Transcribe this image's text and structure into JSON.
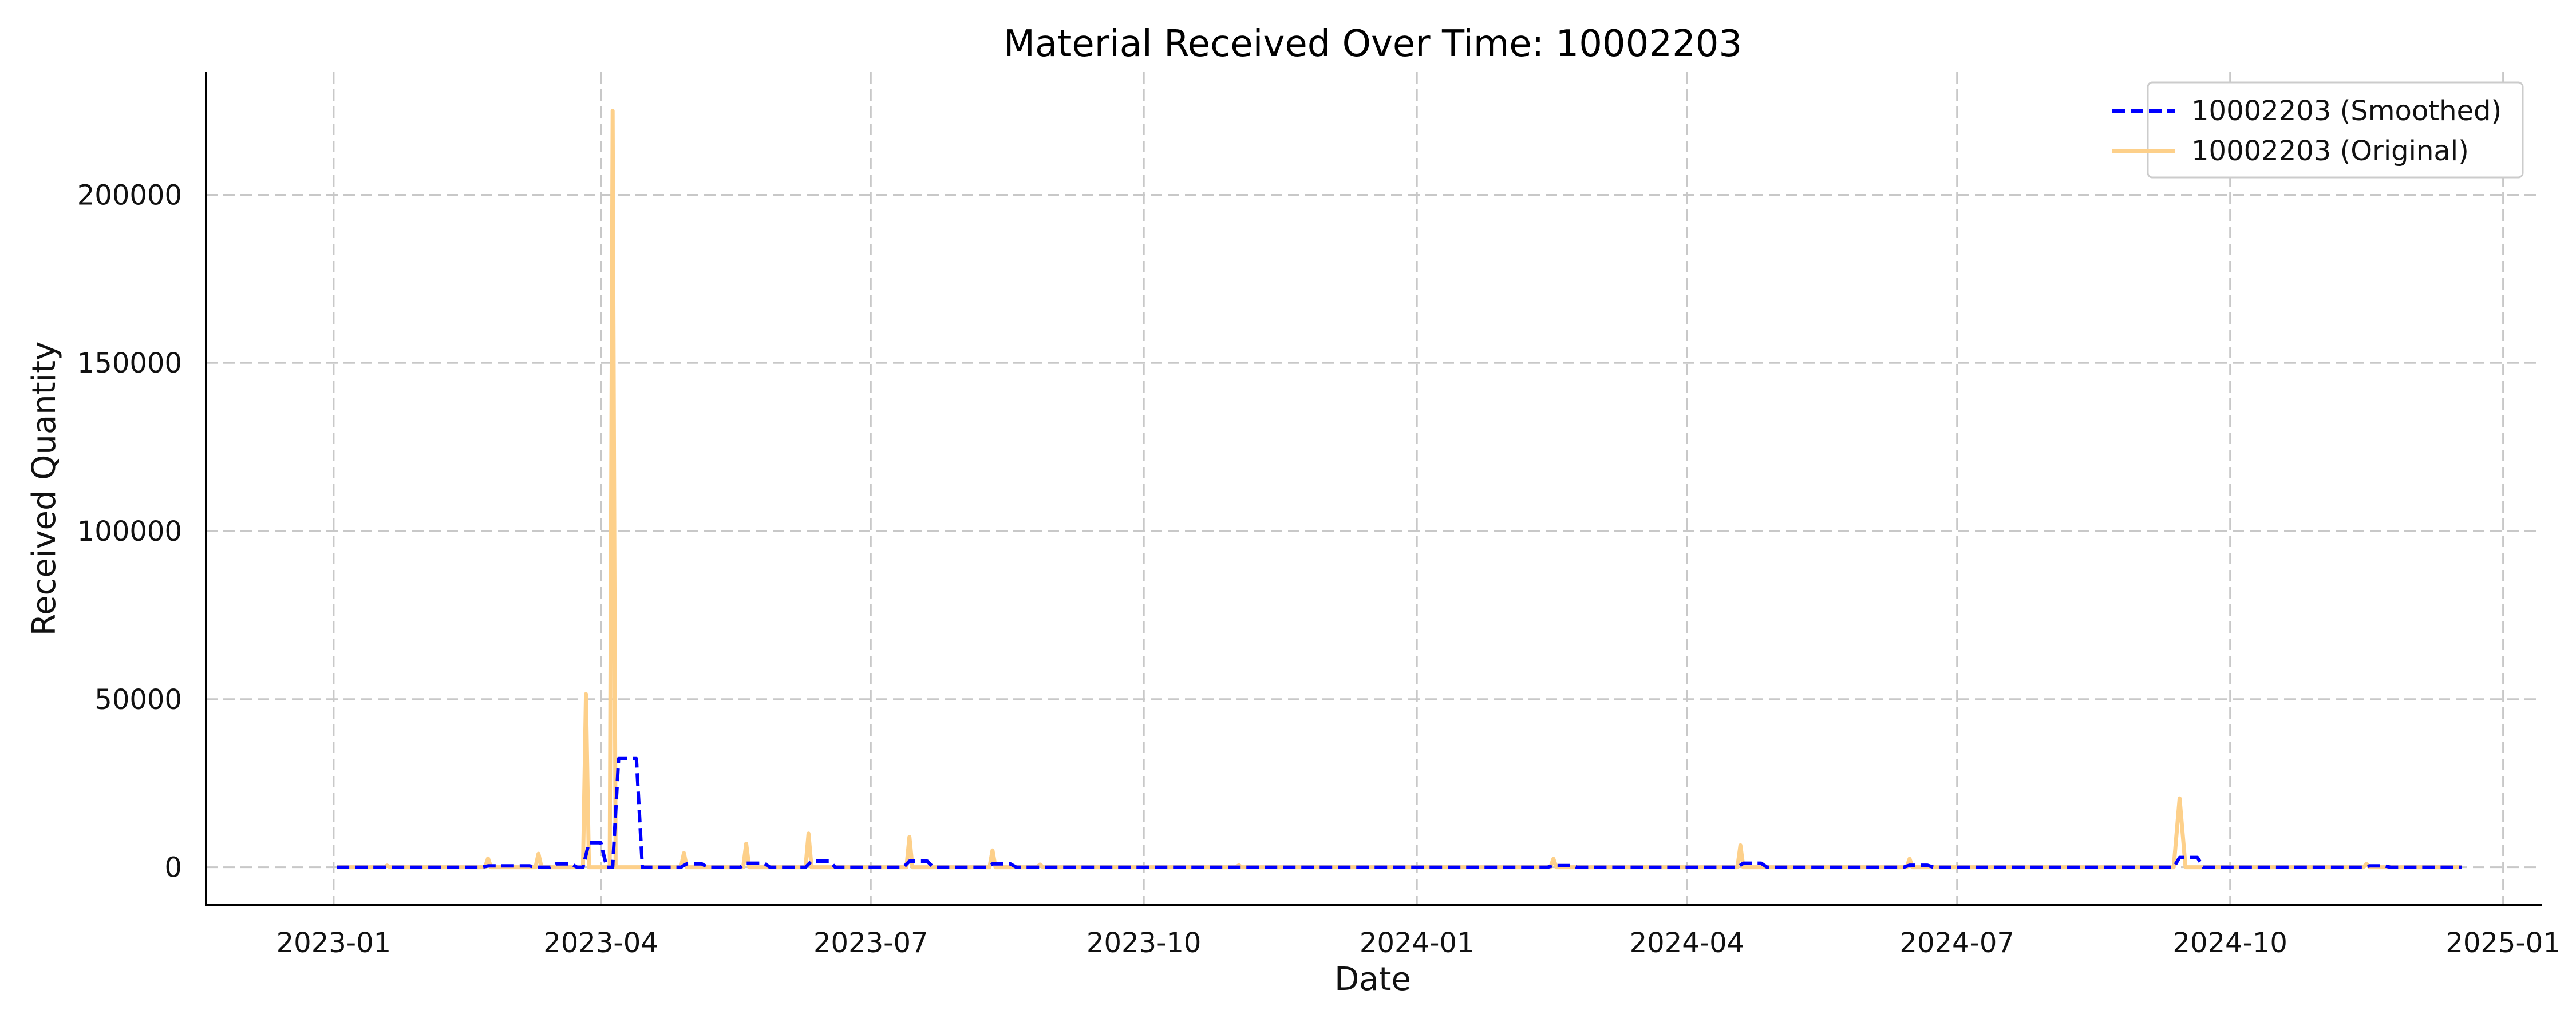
{
  "chart_data": {
    "type": "line",
    "title": "Material Received Over Time: 10002203",
    "xlabel": "Date",
    "ylabel": "Received Quantity",
    "x_ticks": [
      "2023-01",
      "2023-04",
      "2023-07",
      "2023-10",
      "2024-01",
      "2024-04",
      "2024-07",
      "2024-10",
      "2025-01"
    ],
    "y_ticks": [
      "0",
      "50000",
      "100000",
      "150000",
      "200000"
    ],
    "xlim": [
      "2022-11-19",
      "2025-01-14"
    ],
    "ylim": [
      -11300,
      236500
    ],
    "grid": true,
    "legend_position": "top-right",
    "series": [
      {
        "name": "10002203 (Smoothed)",
        "color": "#0000ff",
        "style": "dashed",
        "points": [
          [
            "2023-01-02",
            0
          ],
          [
            "2023-02-20",
            0
          ],
          [
            "2023-02-22",
            400
          ],
          [
            "2023-03-08",
            400
          ],
          [
            "2023-03-10",
            0
          ],
          [
            "2023-03-15",
            0
          ],
          [
            "2023-03-17",
            1000
          ],
          [
            "2023-03-22",
            1000
          ],
          [
            "2023-03-24",
            0
          ],
          [
            "2023-03-26",
            0
          ],
          [
            "2023-03-28",
            7300
          ],
          [
            "2023-04-01",
            7300
          ],
          [
            "2023-04-03",
            0
          ],
          [
            "2023-04-05",
            0
          ],
          [
            "2023-04-07",
            32300
          ],
          [
            "2023-04-13",
            32300
          ],
          [
            "2023-04-15",
            0
          ],
          [
            "2023-04-28",
            0
          ],
          [
            "2023-04-30",
            1000
          ],
          [
            "2023-05-05",
            1000
          ],
          [
            "2023-05-07",
            0
          ],
          [
            "2023-05-18",
            0
          ],
          [
            "2023-05-20",
            1200
          ],
          [
            "2023-05-26",
            1200
          ],
          [
            "2023-05-28",
            0
          ],
          [
            "2023-06-09",
            0
          ],
          [
            "2023-06-11",
            1800
          ],
          [
            "2023-06-17",
            1800
          ],
          [
            "2023-06-19",
            0
          ],
          [
            "2023-07-12",
            0
          ],
          [
            "2023-07-14",
            1800
          ],
          [
            "2023-07-20",
            1800
          ],
          [
            "2023-07-22",
            0
          ],
          [
            "2023-08-09",
            0
          ],
          [
            "2023-08-11",
            1000
          ],
          [
            "2023-08-17",
            1000
          ],
          [
            "2023-08-19",
            0
          ],
          [
            "2024-02-14",
            0
          ],
          [
            "2024-02-16",
            500
          ],
          [
            "2024-02-22",
            500
          ],
          [
            "2024-02-24",
            0
          ],
          [
            "2024-04-18",
            0
          ],
          [
            "2024-04-20",
            1200
          ],
          [
            "2024-04-26",
            1200
          ],
          [
            "2024-04-28",
            0
          ],
          [
            "2024-06-13",
            0
          ],
          [
            "2024-06-15",
            600
          ],
          [
            "2024-06-21",
            600
          ],
          [
            "2024-06-23",
            0
          ],
          [
            "2024-09-12",
            0
          ],
          [
            "2024-09-14",
            2900
          ],
          [
            "2024-09-20",
            2900
          ],
          [
            "2024-09-22",
            0
          ],
          [
            "2024-11-15",
            0
          ],
          [
            "2024-11-17",
            400
          ],
          [
            "2024-11-22",
            400
          ],
          [
            "2024-11-24",
            0
          ],
          [
            "2024-12-18",
            0
          ]
        ]
      },
      {
        "name": "10002203 (Original)",
        "color": "#fdd08a",
        "style": "solid",
        "points": [
          [
            "2023-01-02",
            0
          ],
          [
            "2023-01-18",
            0
          ],
          [
            "2023-01-19",
            500
          ],
          [
            "2023-01-20",
            0
          ],
          [
            "2023-02-21",
            0
          ],
          [
            "2023-02-22",
            2600
          ],
          [
            "2023-02-23",
            0
          ],
          [
            "2023-03-10",
            0
          ],
          [
            "2023-03-11",
            4000
          ],
          [
            "2023-03-12",
            0
          ],
          [
            "2023-03-26",
            0
          ],
          [
            "2023-03-27",
            51500
          ],
          [
            "2023-03-28",
            0
          ],
          [
            "2023-04-04",
            0
          ],
          [
            "2023-04-05",
            225000
          ],
          [
            "2023-04-06",
            0
          ],
          [
            "2023-04-28",
            0
          ],
          [
            "2023-04-29",
            4200
          ],
          [
            "2023-04-30",
            0
          ],
          [
            "2023-05-19",
            0
          ],
          [
            "2023-05-20",
            7000
          ],
          [
            "2023-05-21",
            0
          ],
          [
            "2023-06-09",
            0
          ],
          [
            "2023-06-10",
            10000
          ],
          [
            "2023-06-11",
            0
          ],
          [
            "2023-07-13",
            0
          ],
          [
            "2023-07-14",
            9000
          ],
          [
            "2023-07-15",
            0
          ],
          [
            "2023-08-10",
            0
          ],
          [
            "2023-08-11",
            5000
          ],
          [
            "2023-08-12",
            0
          ],
          [
            "2023-08-26",
            0
          ],
          [
            "2023-08-27",
            800
          ],
          [
            "2023-08-28",
            0
          ],
          [
            "2023-11-01",
            0
          ],
          [
            "2023-11-02",
            600
          ],
          [
            "2023-11-03",
            0
          ],
          [
            "2024-02-15",
            0
          ],
          [
            "2024-02-16",
            2500
          ],
          [
            "2024-02-17",
            0
          ],
          [
            "2024-04-18",
            0
          ],
          [
            "2024-04-19",
            6500
          ],
          [
            "2024-04-20",
            0
          ],
          [
            "2024-06-14",
            0
          ],
          [
            "2024-06-15",
            2500
          ],
          [
            "2024-06-16",
            0
          ],
          [
            "2024-09-12",
            0
          ],
          [
            "2024-09-14",
            20500
          ],
          [
            "2024-09-16",
            0
          ],
          [
            "2024-11-15",
            0
          ],
          [
            "2024-11-16",
            1000
          ],
          [
            "2024-11-17",
            0
          ],
          [
            "2024-12-18",
            0
          ]
        ]
      }
    ]
  }
}
